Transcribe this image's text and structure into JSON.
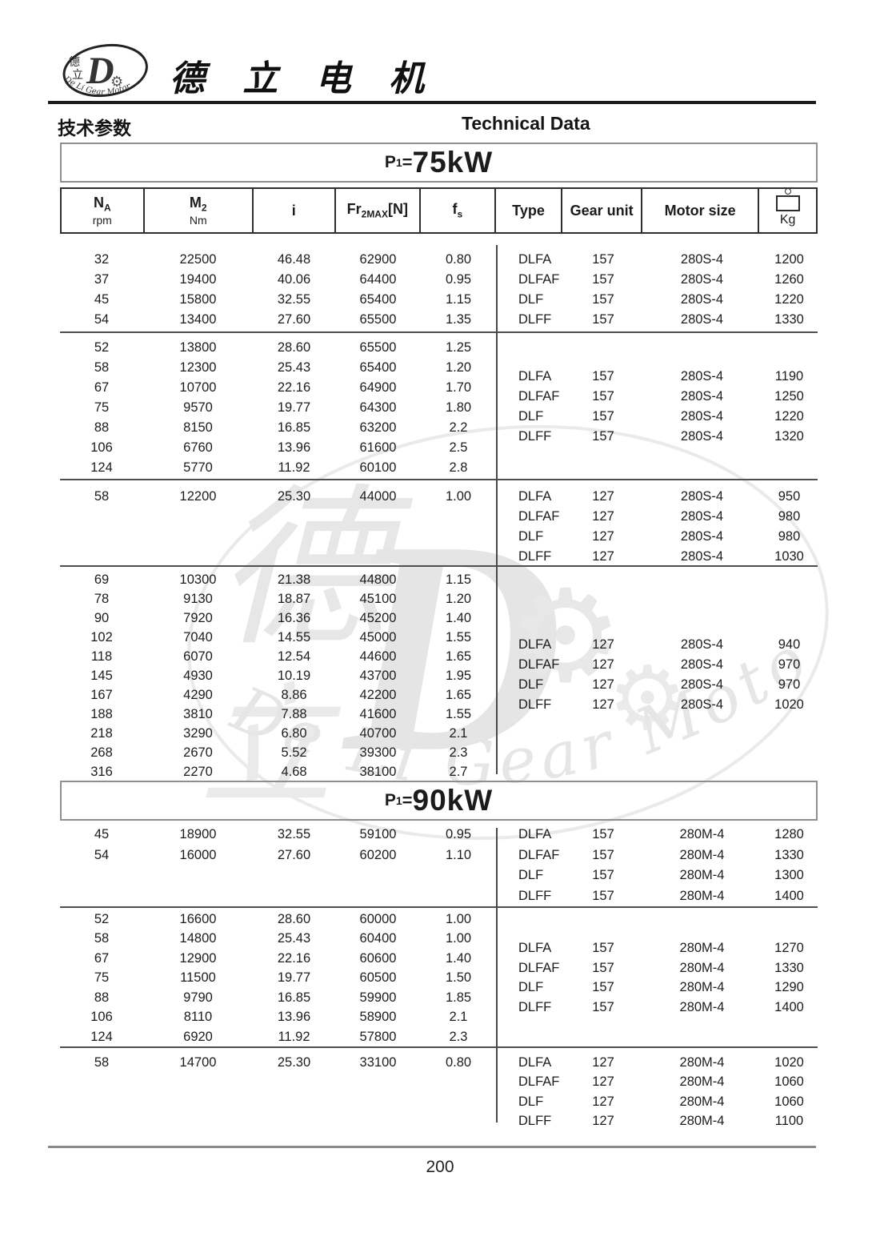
{
  "header": {
    "logo": {
      "cn_top": "德",
      "cn_bottom": "立",
      "d_letter": "D",
      "gear_icon": "⚙",
      "arc_text": "De Li Gear Motor"
    },
    "brand": "德 立 电 机",
    "section_cn": "技术参数",
    "section_en": "Technical Data"
  },
  "table": {
    "columns": [
      {
        "main": "N",
        "sub": "A",
        "unit": "rpm"
      },
      {
        "main": "M",
        "sub": "2",
        "unit": "Nm"
      },
      {
        "main": "i",
        "sub": "",
        "unit": ""
      },
      {
        "main": "Fr",
        "sub": "2MAX",
        "suffix": "[N]"
      },
      {
        "main": "f",
        "sub": "s",
        "unit": ""
      },
      {
        "label": "Type"
      },
      {
        "label": "Gear unit"
      },
      {
        "label": "Motor size"
      },
      {
        "label": "Kg",
        "icon": "weight-icon"
      }
    ]
  },
  "sections": [
    {
      "title": {
        "prefix": "P",
        "sub": "1",
        "eq": "=",
        "value": "75kW"
      },
      "groups": [
        {
          "left": [
            [
              "32",
              "22500",
              "46.48",
              "62900",
              "0.80"
            ],
            [
              "37",
              "19400",
              "40.06",
              "64400",
              "0.95"
            ],
            [
              "45",
              "15800",
              "32.55",
              "65400",
              "1.15"
            ],
            [
              "54",
              "13400",
              "27.60",
              "65500",
              "1.35"
            ]
          ],
          "right": [
            [
              "DLFA",
              "157",
              "280S-4",
              "1200"
            ],
            [
              "DLFAF",
              "157",
              "280S-4",
              "1260"
            ],
            [
              "DLF",
              "157",
              "280S-4",
              "1220"
            ],
            [
              "DLFF",
              "157",
              "280S-4",
              "1330"
            ]
          ]
        },
        {
          "left": [
            [
              "52",
              "13800",
              "28.60",
              "65500",
              "1.25"
            ],
            [
              "58",
              "12300",
              "25.43",
              "65400",
              "1.20"
            ],
            [
              "67",
              "10700",
              "22.16",
              "64900",
              "1.70"
            ],
            [
              "75",
              "9570",
              "19.77",
              "64300",
              "1.80"
            ],
            [
              "88",
              "8150",
              "16.85",
              "63200",
              "2.2"
            ],
            [
              "106",
              "6760",
              "13.96",
              "61600",
              "2.5"
            ],
            [
              "124",
              "5770",
              "11.92",
              "60100",
              "2.8"
            ]
          ],
          "right": [
            [
              "DLFA",
              "157",
              "280S-4",
              "1190"
            ],
            [
              "DLFAF",
              "157",
              "280S-4",
              "1250"
            ],
            [
              "DLF",
              "157",
              "280S-4",
              "1220"
            ],
            [
              "DLFF",
              "157",
              "280S-4",
              "1320"
            ]
          ]
        },
        {
          "left": [
            [
              "58",
              "12200",
              "25.30",
              "44000",
              "1.00"
            ]
          ],
          "right": [
            [
              "DLFA",
              "127",
              "280S-4",
              "950"
            ],
            [
              "DLFAF",
              "127",
              "280S-4",
              "980"
            ],
            [
              "DLF",
              "127",
              "280S-4",
              "980"
            ],
            [
              "DLFF",
              "127",
              "280S-4",
              "1030"
            ]
          ]
        },
        {
          "left": [
            [
              "69",
              "10300",
              "21.38",
              "44800",
              "1.15"
            ],
            [
              "78",
              "9130",
              "18.87",
              "45100",
              "1.20"
            ],
            [
              "90",
              "7920",
              "16.36",
              "45200",
              "1.40"
            ],
            [
              "102",
              "7040",
              "14.55",
              "45000",
              "1.55"
            ],
            [
              "118",
              "6070",
              "12.54",
              "44600",
              "1.65"
            ],
            [
              "145",
              "4930",
              "10.19",
              "43700",
              "1.95"
            ],
            [
              "167",
              "4290",
              "8.86",
              "42200",
              "1.65"
            ],
            [
              "188",
              "3810",
              "7.88",
              "41600",
              "1.55"
            ],
            [
              "218",
              "3290",
              "6.80",
              "40700",
              "2.1"
            ],
            [
              "268",
              "2670",
              "5.52",
              "39300",
              "2.3"
            ],
            [
              "316",
              "2270",
              "4.68",
              "38100",
              "2.7"
            ]
          ],
          "right": [
            [
              "DLFA",
              "127",
              "280S-4",
              "940"
            ],
            [
              "DLFAF",
              "127",
              "280S-4",
              "970"
            ],
            [
              "DLF",
              "127",
              "280S-4",
              "970"
            ],
            [
              "DLFF",
              "127",
              "280S-4",
              "1020"
            ]
          ]
        }
      ]
    },
    {
      "title": {
        "prefix": "P",
        "sub": "1",
        "eq": "=",
        "value": "90kW"
      },
      "groups": [
        {
          "left": [
            [
              "45",
              "18900",
              "32.55",
              "59100",
              "0.95"
            ],
            [
              "54",
              "16000",
              "27.60",
              "60200",
              "1.10"
            ]
          ],
          "right": [
            [
              "DLFA",
              "157",
              "280M-4",
              "1280"
            ],
            [
              "DLFAF",
              "157",
              "280M-4",
              "1330"
            ],
            [
              "DLF",
              "157",
              "280M-4",
              "1300"
            ],
            [
              "DLFF",
              "157",
              "280M-4",
              "1400"
            ]
          ]
        },
        {
          "left": [
            [
              "52",
              "16600",
              "28.60",
              "60000",
              "1.00"
            ],
            [
              "58",
              "14800",
              "25.43",
              "60400",
              "1.00"
            ],
            [
              "67",
              "12900",
              "22.16",
              "60600",
              "1.40"
            ],
            [
              "75",
              "11500",
              "19.77",
              "60500",
              "1.50"
            ],
            [
              "88",
              "9790",
              "16.85",
              "59900",
              "1.85"
            ],
            [
              "106",
              "8110",
              "13.96",
              "58900",
              "2.1"
            ],
            [
              "124",
              "6920",
              "11.92",
              "57800",
              "2.3"
            ]
          ],
          "right": [
            [
              "DLFA",
              "157",
              "280M-4",
              "1270"
            ],
            [
              "DLFAF",
              "157",
              "280M-4",
              "1330"
            ],
            [
              "DLF",
              "157",
              "280M-4",
              "1290"
            ],
            [
              "DLFF",
              "157",
              "280M-4",
              "1400"
            ]
          ]
        },
        {
          "left": [
            [
              "58",
              "14700",
              "25.30",
              "33100",
              "0.80"
            ]
          ],
          "right": [
            [
              "DLFA",
              "127",
              "280M-4",
              "1020"
            ],
            [
              "DLFAF",
              "127",
              "280M-4",
              "1060"
            ],
            [
              "DLF",
              "127",
              "280M-4",
              "1060"
            ],
            [
              "DLFF",
              "127",
              "280M-4",
              "1100"
            ]
          ]
        }
      ]
    }
  ],
  "watermark": {
    "cn_top": "德",
    "cn_bottom": "立",
    "d_letter": "D",
    "gear_icon": "⚙",
    "arc_text": "De Li Gear Motor"
  },
  "footer": {
    "page_number": "200"
  }
}
